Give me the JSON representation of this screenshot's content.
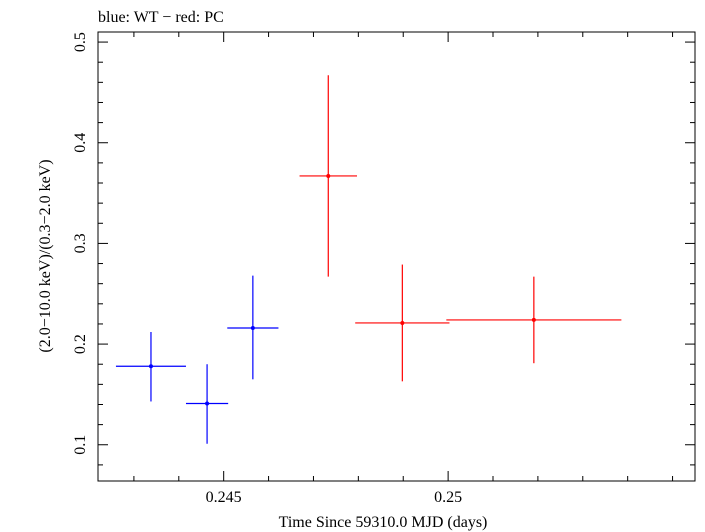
{
  "chart_data": {
    "type": "scatter",
    "title": "blue: WT − red: PC",
    "xlabel": "Time Since 59310.0 MJD (days)",
    "ylabel": "(2.0−10.0 keV)/(0.3−2.0 keV)",
    "xlim": [
      0.2422,
      0.2555
    ],
    "ylim": [
      0.064,
      0.51
    ],
    "x_major_ticks": [
      0.245,
      0.25
    ],
    "x_tick_labels": [
      "0.245",
      "0.25"
    ],
    "x_minor_step": 0.001,
    "y_major_ticks": [
      0.1,
      0.2,
      0.3,
      0.4,
      0.5
    ],
    "y_tick_labels": [
      "0.1",
      "0.2",
      "0.3",
      "0.4",
      "0.5"
    ],
    "y_minor_step": 0.02,
    "grid": false,
    "series": [
      {
        "name": "WT",
        "color": "#0000ff",
        "points": [
          {
            "x": 0.24338,
            "y": 0.178,
            "xerr": 0.00078,
            "yerr_low": 0.035,
            "yerr_high": 0.034
          },
          {
            "x": 0.24463,
            "y": 0.141,
            "xerr": 0.00047,
            "yerr_low": 0.04,
            "yerr_high": 0.039
          },
          {
            "x": 0.24565,
            "y": 0.216,
            "xerr": 0.00057,
            "yerr_low": 0.051,
            "yerr_high": 0.052
          }
        ]
      },
      {
        "name": "PC",
        "color": "#ff0000",
        "points": [
          {
            "x": 0.24733,
            "y": 0.367,
            "xerr": 0.00064,
            "yerr_low": 0.1,
            "yerr_high": 0.1
          },
          {
            "x": 0.24898,
            "y": 0.221,
            "xerr": 0.00105,
            "yerr_low": 0.058,
            "yerr_high": 0.058
          },
          {
            "x": 0.25191,
            "y": 0.224,
            "xerr": 0.00195,
            "yerr_low": 0.043,
            "yerr_high": 0.043
          }
        ]
      }
    ]
  }
}
